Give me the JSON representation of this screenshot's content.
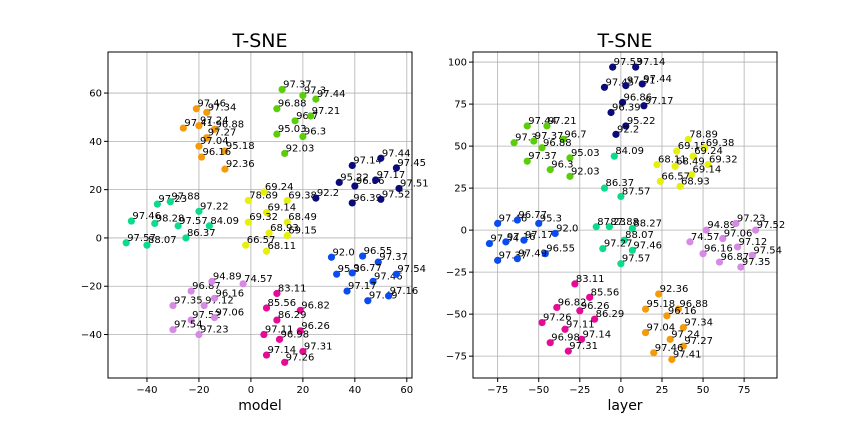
{
  "colors": {
    "orange": "#f59a0a",
    "yellow": "#e6f00a",
    "green": "#5ccd0a",
    "teal": "#0adc8c",
    "blue": "#0a4cf0",
    "navy": "#0a0a78",
    "pink": "#e60a96",
    "lavender": "#d68ae6"
  },
  "chart_data": [
    {
      "type": "scatter",
      "title": "T-SNE",
      "xlabel": "model",
      "ylabel": "",
      "xlim": [
        -55,
        62
      ],
      "ylim": [
        -58,
        77
      ],
      "xticks": [
        -40,
        -20,
        0,
        20,
        40,
        60
      ],
      "yticks": [
        -40,
        -20,
        0,
        20,
        40,
        60
      ],
      "grid": true,
      "points": [
        {
          "x": -21,
          "y": 53.5,
          "label": "97.46",
          "color": "orange"
        },
        {
          "x": -17,
          "y": 52,
          "label": "97.34",
          "color": "orange"
        },
        {
          "x": -26,
          "y": 45.5,
          "label": "97.41",
          "color": "orange"
        },
        {
          "x": -20,
          "y": 46.5,
          "label": "97.24",
          "color": "orange"
        },
        {
          "x": -14,
          "y": 45,
          "label": "96.88",
          "color": "orange"
        },
        {
          "x": -17,
          "y": 41.5,
          "label": "97.27",
          "color": "orange"
        },
        {
          "x": -20,
          "y": 38,
          "label": "97.04",
          "color": "orange"
        },
        {
          "x": -10,
          "y": 36,
          "label": "95.18",
          "color": "orange"
        },
        {
          "x": -19,
          "y": 33.5,
          "label": "96.16",
          "color": "orange"
        },
        {
          "x": -10,
          "y": 28.5,
          "label": "92.36",
          "color": "orange"
        },
        {
          "x": 12,
          "y": 61.5,
          "label": "97.37",
          "color": "green"
        },
        {
          "x": 20,
          "y": 59,
          "label": "97.3",
          "color": "green"
        },
        {
          "x": 25,
          "y": 57.5,
          "label": "97.44",
          "color": "green"
        },
        {
          "x": 10,
          "y": 53.5,
          "label": "96.88",
          "color": "green"
        },
        {
          "x": 17,
          "y": 48.5,
          "label": "96.7",
          "color": "green"
        },
        {
          "x": 23,
          "y": 50.5,
          "label": "97.21",
          "color": "green"
        },
        {
          "x": 10,
          "y": 43,
          "label": "95.03",
          "color": "green"
        },
        {
          "x": 20,
          "y": 42,
          "label": "96.3",
          "color": "green"
        },
        {
          "x": 13,
          "y": 35,
          "label": "92.03",
          "color": "green"
        },
        {
          "x": -36,
          "y": 14,
          "label": "97.23",
          "color": "teal"
        },
        {
          "x": -31,
          "y": 15,
          "label": "97.88",
          "color": "teal"
        },
        {
          "x": -20,
          "y": 11,
          "label": "97.22",
          "color": "teal"
        },
        {
          "x": -46,
          "y": 7,
          "label": "97.46",
          "color": "teal"
        },
        {
          "x": -37,
          "y": 6,
          "label": "98.28",
          "color": "teal"
        },
        {
          "x": -28,
          "y": 5,
          "label": "97.57",
          "color": "teal"
        },
        {
          "x": -16,
          "y": 5,
          "label": "84.09",
          "color": "teal"
        },
        {
          "x": -48,
          "y": -2,
          "label": "97.57",
          "color": "teal"
        },
        {
          "x": -40,
          "y": -3,
          "label": "88.07",
          "color": "teal"
        },
        {
          "x": -25,
          "y": 0,
          "label": "86.37",
          "color": "teal"
        },
        {
          "x": -1,
          "y": 15.5,
          "label": "78.89",
          "color": "yellow"
        },
        {
          "x": 5,
          "y": 19,
          "label": "69.24",
          "color": "yellow"
        },
        {
          "x": 14,
          "y": 15.5,
          "label": "69.38",
          "color": "yellow"
        },
        {
          "x": 6,
          "y": 10.5,
          "label": "69.14",
          "color": "yellow"
        },
        {
          "x": -1,
          "y": 6.5,
          "label": "69.32",
          "color": "yellow"
        },
        {
          "x": 14,
          "y": 6.5,
          "label": "68.49",
          "color": "yellow"
        },
        {
          "x": 7,
          "y": 2,
          "label": "68.93",
          "color": "yellow"
        },
        {
          "x": 14,
          "y": 1,
          "label": "69.15",
          "color": "yellow"
        },
        {
          "x": -2,
          "y": -3,
          "label": "66.57",
          "color": "yellow"
        },
        {
          "x": 6,
          "y": -5.5,
          "label": "68.11",
          "color": "yellow"
        },
        {
          "x": 39,
          "y": 30,
          "label": "97.14",
          "color": "navy"
        },
        {
          "x": 50,
          "y": 33,
          "label": "97.44",
          "color": "navy"
        },
        {
          "x": 56,
          "y": 29,
          "label": "97.45",
          "color": "navy"
        },
        {
          "x": 34,
          "y": 23,
          "label": "95.22",
          "color": "navy"
        },
        {
          "x": 40,
          "y": 21.5,
          "label": "96.86",
          "color": "navy"
        },
        {
          "x": 48,
          "y": 24,
          "label": "97.17",
          "color": "navy"
        },
        {
          "x": 57,
          "y": 20.5,
          "label": "97.51",
          "color": "navy"
        },
        {
          "x": 25,
          "y": 16.5,
          "label": "92.2",
          "color": "navy"
        },
        {
          "x": 39,
          "y": 14.5,
          "label": "96.39",
          "color": "navy"
        },
        {
          "x": 50,
          "y": 16,
          "label": "97.52",
          "color": "navy"
        },
        {
          "x": 31,
          "y": -8,
          "label": "92.0",
          "color": "blue"
        },
        {
          "x": 43,
          "y": -7.5,
          "label": "96.55",
          "color": "blue"
        },
        {
          "x": 49,
          "y": -10,
          "label": "97.37",
          "color": "blue"
        },
        {
          "x": 33,
          "y": -15,
          "label": "95.3",
          "color": "blue"
        },
        {
          "x": 39,
          "y": -14.5,
          "label": "96.77",
          "color": "blue"
        },
        {
          "x": 47,
          "y": -18,
          "label": "97.46",
          "color": "blue"
        },
        {
          "x": 56,
          "y": -15,
          "label": "97.54",
          "color": "blue"
        },
        {
          "x": 37,
          "y": -22,
          "label": "97.17",
          "color": "blue"
        },
        {
          "x": 45,
          "y": -26,
          "label": "97.49",
          "color": "blue"
        },
        {
          "x": 53,
          "y": -24,
          "label": "97.16",
          "color": "blue"
        },
        {
          "x": -23,
          "y": -22,
          "label": "96.87",
          "color": "lavender"
        },
        {
          "x": -15,
          "y": -18,
          "label": "94.89",
          "color": "lavender"
        },
        {
          "x": -30,
          "y": -28,
          "label": "97.35",
          "color": "lavender"
        },
        {
          "x": -18,
          "y": -28,
          "label": "97.12",
          "color": "lavender"
        },
        {
          "x": -14,
          "y": -25,
          "label": "96.16",
          "color": "lavender"
        },
        {
          "x": -23,
          "y": -34,
          "label": "97.52",
          "color": "lavender"
        },
        {
          "x": -14,
          "y": -33,
          "label": "97.06",
          "color": "lavender"
        },
        {
          "x": -30,
          "y": -38,
          "label": "97.54",
          "color": "lavender"
        },
        {
          "x": -20,
          "y": -40,
          "label": "97.23",
          "color": "lavender"
        },
        {
          "x": -3,
          "y": -19,
          "label": "74.57",
          "color": "lavender"
        },
        {
          "x": 10,
          "y": -23,
          "label": "83.11",
          "color": "pink"
        },
        {
          "x": 6,
          "y": -29,
          "label": "85.56",
          "color": "pink"
        },
        {
          "x": 19,
          "y": -30,
          "label": "96.82",
          "color": "pink"
        },
        {
          "x": 10,
          "y": -34,
          "label": "86.29",
          "color": "pink"
        },
        {
          "x": 19,
          "y": -38.5,
          "label": "96.26",
          "color": "pink"
        },
        {
          "x": 5,
          "y": -40,
          "label": "97.11",
          "color": "pink"
        },
        {
          "x": 11,
          "y": -42,
          "label": "96.98",
          "color": "pink"
        },
        {
          "x": 20,
          "y": -47,
          "label": "97.31",
          "color": "pink"
        },
        {
          "x": 6,
          "y": -48.5,
          "label": "97.14",
          "color": "pink"
        },
        {
          "x": 13,
          "y": -51.5,
          "label": "97.26",
          "color": "pink"
        }
      ]
    },
    {
      "type": "scatter",
      "title": "T-SNE",
      "xlabel": "layer",
      "ylabel": "",
      "xlim": [
        -90,
        95
      ],
      "ylim": [
        -88,
        106
      ],
      "xticks": [
        -75,
        -50,
        -25,
        0,
        25,
        50,
        75
      ],
      "yticks": [
        -75,
        -50,
        -25,
        0,
        25,
        50,
        75,
        100
      ],
      "grid": true,
      "points": [
        {
          "x": -5,
          "y": 97,
          "label": "97.53",
          "color": "navy"
        },
        {
          "x": 9,
          "y": 97,
          "label": "97.14",
          "color": "navy"
        },
        {
          "x": -10,
          "y": 85,
          "label": "97.45",
          "color": "navy"
        },
        {
          "x": 3,
          "y": 86,
          "label": "97.51",
          "color": "navy"
        },
        {
          "x": 13,
          "y": 87,
          "label": "97.44",
          "color": "navy"
        },
        {
          "x": 1,
          "y": 76,
          "label": "96.86",
          "color": "navy"
        },
        {
          "x": 14,
          "y": 74,
          "label": "97.17",
          "color": "navy"
        },
        {
          "x": -6,
          "y": 70,
          "label": "96.39",
          "color": "navy"
        },
        {
          "x": 3,
          "y": 62,
          "label": "95.22",
          "color": "navy"
        },
        {
          "x": -3,
          "y": 57,
          "label": "92.2",
          "color": "navy"
        },
        {
          "x": -57,
          "y": 62,
          "label": "97.44",
          "color": "green"
        },
        {
          "x": -45,
          "y": 62,
          "label": "97.21",
          "color": "green"
        },
        {
          "x": -65,
          "y": 52,
          "label": "97.3",
          "color": "green"
        },
        {
          "x": -53,
          "y": 53,
          "label": "97.37",
          "color": "green"
        },
        {
          "x": -35,
          "y": 54,
          "label": "96.7",
          "color": "green"
        },
        {
          "x": -48,
          "y": 49,
          "label": "96.88",
          "color": "green"
        },
        {
          "x": -57,
          "y": 41,
          "label": "97.37",
          "color": "green"
        },
        {
          "x": -31,
          "y": 43,
          "label": "95.03",
          "color": "green"
        },
        {
          "x": -43,
          "y": 36,
          "label": "96.3",
          "color": "green"
        },
        {
          "x": -31,
          "y": 32,
          "label": "92.03",
          "color": "green"
        },
        {
          "x": 41,
          "y": 54,
          "label": "78.89",
          "color": "yellow"
        },
        {
          "x": 34,
          "y": 47,
          "label": "69.15",
          "color": "yellow"
        },
        {
          "x": 51,
          "y": 49,
          "label": "69.38",
          "color": "yellow"
        },
        {
          "x": 44,
          "y": 44,
          "label": "69.24",
          "color": "yellow"
        },
        {
          "x": 22,
          "y": 39,
          "label": "68.11",
          "color": "yellow"
        },
        {
          "x": 33,
          "y": 38,
          "label": "68.49",
          "color": "yellow"
        },
        {
          "x": 53,
          "y": 39,
          "label": "69.32",
          "color": "yellow"
        },
        {
          "x": 43,
          "y": 33,
          "label": "69.14",
          "color": "yellow"
        },
        {
          "x": 24,
          "y": 29,
          "label": "66.57",
          "color": "yellow"
        },
        {
          "x": 36,
          "y": 26,
          "label": "68.93",
          "color": "yellow"
        },
        {
          "x": -4,
          "y": 44,
          "label": "84.09",
          "color": "teal"
        },
        {
          "x": -10,
          "y": 25,
          "label": "86.37",
          "color": "teal"
        },
        {
          "x": 0,
          "y": 20,
          "label": "87.57",
          "color": "teal"
        },
        {
          "x": -15,
          "y": 2,
          "label": "87.23",
          "color": "teal"
        },
        {
          "x": -7,
          "y": 2,
          "label": "87.88",
          "color": "teal"
        },
        {
          "x": 7,
          "y": 1,
          "label": "88.27",
          "color": "teal"
        },
        {
          "x": 2,
          "y": -6,
          "label": "88.07",
          "color": "teal"
        },
        {
          "x": -11,
          "y": -11,
          "label": "97.27",
          "color": "teal"
        },
        {
          "x": 7,
          "y": -12,
          "label": "97.46",
          "color": "teal"
        },
        {
          "x": 0,
          "y": -20,
          "label": "97.57",
          "color": "teal"
        },
        {
          "x": -75,
          "y": 4,
          "label": "97.46",
          "color": "blue"
        },
        {
          "x": -63,
          "y": 6,
          "label": "96.77",
          "color": "blue"
        },
        {
          "x": -50,
          "y": 4,
          "label": "95.3",
          "color": "blue"
        },
        {
          "x": -80,
          "y": -8,
          "label": "97.54",
          "color": "blue"
        },
        {
          "x": -70,
          "y": -7,
          "label": "97.16",
          "color": "blue"
        },
        {
          "x": -59,
          "y": -6,
          "label": "97.17",
          "color": "blue"
        },
        {
          "x": -40,
          "y": -2,
          "label": "92.0",
          "color": "blue"
        },
        {
          "x": -46,
          "y": -14,
          "label": "96.55",
          "color": "blue"
        },
        {
          "x": -75,
          "y": -18,
          "label": "97.37",
          "color": "blue"
        },
        {
          "x": -63,
          "y": -17,
          "label": "97.49",
          "color": "blue"
        },
        {
          "x": 42,
          "y": -7,
          "label": "74.57",
          "color": "lavender"
        },
        {
          "x": 52,
          "y": 0,
          "label": "94.89",
          "color": "lavender"
        },
        {
          "x": 70,
          "y": 4,
          "label": "97.23",
          "color": "lavender"
        },
        {
          "x": 82,
          "y": 0,
          "label": "97.52",
          "color": "lavender"
        },
        {
          "x": 62,
          "y": -5,
          "label": "97.06",
          "color": "lavender"
        },
        {
          "x": 71,
          "y": -10,
          "label": "97.12",
          "color": "lavender"
        },
        {
          "x": 50,
          "y": -14,
          "label": "96.16",
          "color": "lavender"
        },
        {
          "x": 80,
          "y": -15,
          "label": "97.54",
          "color": "lavender"
        },
        {
          "x": 60,
          "y": -19,
          "label": "96.87",
          "color": "lavender"
        },
        {
          "x": 73,
          "y": -22,
          "label": "97.35",
          "color": "lavender"
        },
        {
          "x": -28,
          "y": -32,
          "label": "83.11",
          "color": "pink"
        },
        {
          "x": -19,
          "y": -40,
          "label": "85.56",
          "color": "pink"
        },
        {
          "x": -39,
          "y": -46,
          "label": "96.82",
          "color": "pink"
        },
        {
          "x": -25,
          "y": -48,
          "label": "96.26",
          "color": "pink"
        },
        {
          "x": -16,
          "y": -53,
          "label": "86.29",
          "color": "pink"
        },
        {
          "x": -48,
          "y": -55,
          "label": "97.26",
          "color": "pink"
        },
        {
          "x": -34,
          "y": -59,
          "label": "97.11",
          "color": "pink"
        },
        {
          "x": -24,
          "y": -65,
          "label": "97.14",
          "color": "pink"
        },
        {
          "x": -43,
          "y": -67,
          "label": "96.98",
          "color": "pink"
        },
        {
          "x": -32,
          "y": -72,
          "label": "97.31",
          "color": "pink"
        },
        {
          "x": 23,
          "y": -38,
          "label": "92.36",
          "color": "orange"
        },
        {
          "x": 15,
          "y": -47,
          "label": "95.18",
          "color": "orange"
        },
        {
          "x": 35,
          "y": -47,
          "label": "96.88",
          "color": "orange"
        },
        {
          "x": 28,
          "y": -51,
          "label": "96.16",
          "color": "orange"
        },
        {
          "x": 38,
          "y": -58,
          "label": "97.34",
          "color": "orange"
        },
        {
          "x": 15,
          "y": -61,
          "label": "97.04",
          "color": "orange"
        },
        {
          "x": 30,
          "y": -65,
          "label": "97.24",
          "color": "orange"
        },
        {
          "x": 38,
          "y": -69,
          "label": "97.27",
          "color": "orange"
        },
        {
          "x": 20,
          "y": -73,
          "label": "97.46",
          "color": "orange"
        },
        {
          "x": 31,
          "y": -77,
          "label": "97.41",
          "color": "orange"
        }
      ]
    }
  ]
}
